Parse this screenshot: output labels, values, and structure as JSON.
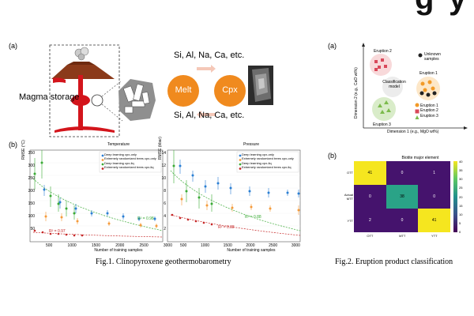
{
  "header": {
    "bleed_right": "g",
    "bleed_far": "y"
  },
  "fig1": {
    "panel_a": "(a)",
    "panel_b": "(b)",
    "magma_label": "Magma storage",
    "elements_top": "Si, Al, Na, Ca, etc.",
    "elements_bottom": "Si, Al, Na, Ca, etc.",
    "melt": "Melt",
    "cpx": "Cpx",
    "caption": "Fig.1. Clinopyroxene geothermobarometry",
    "temperature": {
      "title": "Temperature",
      "ylabel": "RMSE (°C)",
      "xlabel": "Number of training samples",
      "yticks": [
        "350",
        "300",
        "250",
        "200",
        "150",
        "100",
        "50"
      ],
      "xticks": [
        "500",
        "1000",
        "1500",
        "2000",
        "2500",
        "3000"
      ],
      "r2_green": "R² = 0.98",
      "r2_red": "R² = 0.97"
    },
    "pressure": {
      "title": "Pressure",
      "ylabel": "RMSE (kbar)",
      "xlabel": "Number of training samples",
      "yticks": [
        "14",
        "12",
        "10",
        "8",
        "6",
        "4",
        "2"
      ],
      "xticks": [
        "500",
        "1000",
        "1500",
        "2000",
        "2500",
        "3000"
      ],
      "r2_green": "R² = 0.88",
      "r2_red": "R² = 0.88"
    },
    "legend": [
      "Deep learning cpx-only",
      "Extremely randomized trees cpx-only",
      "Deep learning cpx-liq",
      "Extremely randomized trees cpx-liq"
    ]
  },
  "fig2": {
    "panel_a": "(a)",
    "panel_b": "(b)",
    "eruption2": "Eruption 2",
    "eruption1": "Eruption 1",
    "eruption3": "Eruption 3",
    "unknown": "Unknown samples",
    "classification": "Classification model",
    "legend_e1": "Eruption 1",
    "legend_e2": "Eruption 2",
    "legend_e3": "Eruption 3",
    "dim1": "Dimension 1 (e.g., MgO wt%)",
    "dim2": "Dimension 2 (e.g., CaO wt%)",
    "heatmap_title": "Biotite major element",
    "row_labels": [
      "OTT",
      "Actual MTT",
      "YTT"
    ],
    "col_labels": [
      "OTT",
      "MTT",
      "YTT"
    ],
    "matrix": [
      [
        "41",
        "0",
        "1"
      ],
      [
        "0",
        "38",
        "0"
      ],
      [
        "2",
        "0",
        "41"
      ]
    ],
    "colorbar_ticks": [
      "40",
      "35",
      "30",
      "25",
      "20",
      "15",
      "10",
      "5",
      "0"
    ],
    "caption": "Fig.2. Eruption product classification"
  },
  "colors": {
    "melt": "#f08a1e",
    "cpx": "#f08a1e",
    "magma_red": "#d3151c",
    "volcano_brown": "#8b3a1a",
    "blue": "#2b7fd3",
    "orange": "#f59a3a",
    "green": "#3aaa35",
    "red": "#c62828",
    "heat_yellow": "#f5e61f",
    "heat_green": "#2aa387",
    "heat_purple": "#45136d"
  }
}
